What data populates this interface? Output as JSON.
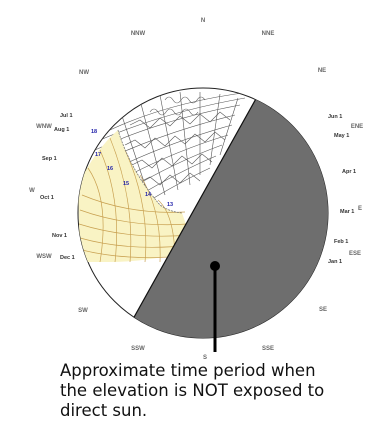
{
  "compass": {
    "n": "N",
    "nne": "NNE",
    "ne": "NE",
    "ene": "ENE",
    "e": "E",
    "ese": "ESE",
    "se": "SE",
    "sse": "SSE",
    "s": "S",
    "ssw": "SSW",
    "sw": "SW",
    "wsw": "WSW",
    "w": "W",
    "wnw": "WNW",
    "nw": "NW",
    "nnw": "NNW"
  },
  "months_left": [
    "Jul 1",
    "Aug 1",
    "Sep 1",
    "Oct 1",
    "Nov 1",
    "Dec 1"
  ],
  "months_right": [
    "Jun 1",
    "May 1",
    "Apr 1",
    "Mar 1",
    "Feb 1",
    "Jan 1"
  ],
  "hour_labels": [
    "18",
    "17",
    "16",
    "15",
    "14",
    "13"
  ],
  "colors": {
    "shade": "#6e6e6e",
    "sunpath": "#f9f3c4",
    "grid": "#c8a050",
    "obstruction": "#555555",
    "marker": "#000000"
  },
  "caption": {
    "line1": "Approximate time period when",
    "line2": "the elevation is NOT exposed to",
    "line3": "direct sun."
  }
}
